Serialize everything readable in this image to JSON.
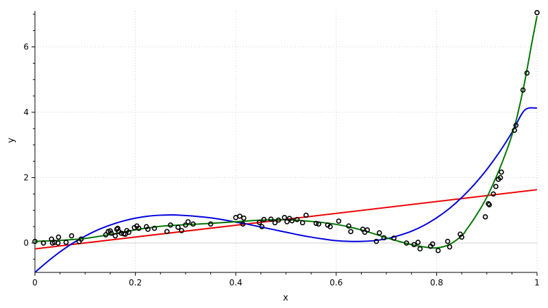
{
  "chart_data": {
    "type": "scatter",
    "title": "",
    "xlabel": "x",
    "ylabel": "y",
    "xlim": [
      0,
      1
    ],
    "ylim": [
      -0.9,
      7.1
    ],
    "grid": true,
    "x_ticks": [
      0,
      0.2,
      0.4,
      0.6,
      0.8,
      1
    ],
    "x_tick_labels": [
      "0",
      "0.2",
      "0.4",
      "0.6",
      "0.8",
      "1"
    ],
    "y_ticks": [
      0,
      2,
      4,
      6
    ],
    "y_tick_labels": [
      "0",
      "2",
      "4",
      "6"
    ],
    "points": {
      "marker_color": "#000000",
      "x": [
        0.0,
        0.017,
        0.033,
        0.035,
        0.039,
        0.046,
        0.047,
        0.062,
        0.073,
        0.088,
        0.092,
        0.141,
        0.146,
        0.15,
        0.152,
        0.16,
        0.163,
        0.165,
        0.167,
        0.172,
        0.177,
        0.18,
        0.183,
        0.187,
        0.198,
        0.203,
        0.207,
        0.222,
        0.225,
        0.238,
        0.263,
        0.27,
        0.285,
        0.292,
        0.3,
        0.305,
        0.315,
        0.35,
        0.4,
        0.408,
        0.414,
        0.416,
        0.447,
        0.452,
        0.456,
        0.47,
        0.478,
        0.485,
        0.497,
        0.502,
        0.507,
        0.512,
        0.522,
        0.533,
        0.54,
        0.56,
        0.565,
        0.583,
        0.588,
        0.605,
        0.625,
        0.629,
        0.653,
        0.657,
        0.662,
        0.68,
        0.686,
        0.695,
        0.715,
        0.74,
        0.755,
        0.763,
        0.767,
        0.788,
        0.792,
        0.803,
        0.822,
        0.826,
        0.847,
        0.85,
        0.897,
        0.903,
        0.905,
        0.913,
        0.918,
        0.923,
        0.927,
        0.929,
        0.955,
        0.958,
        0.972,
        0.98,
        1.0
      ],
      "y": [
        0.05,
        0.0,
        0.12,
        0.0,
        0.02,
        0.0,
        0.18,
        0.02,
        0.22,
        0.04,
        0.12,
        0.25,
        0.35,
        0.37,
        0.3,
        0.22,
        0.42,
        0.45,
        0.35,
        0.3,
        0.28,
        0.27,
        0.38,
        0.33,
        0.47,
        0.52,
        0.45,
        0.5,
        0.42,
        0.45,
        0.35,
        0.55,
        0.48,
        0.38,
        0.55,
        0.65,
        0.58,
        0.58,
        0.78,
        0.82,
        0.58,
        0.76,
        0.63,
        0.5,
        0.72,
        0.73,
        0.62,
        0.7,
        0.78,
        0.65,
        0.75,
        0.68,
        0.72,
        0.62,
        0.85,
        0.6,
        0.58,
        0.55,
        0.5,
        0.67,
        0.52,
        0.35,
        0.42,
        0.33,
        0.4,
        0.05,
        0.31,
        0.16,
        0.15,
        0.0,
        -0.05,
        0.02,
        -0.18,
        -0.1,
        -0.03,
        -0.23,
        0.05,
        -0.12,
        0.27,
        0.18,
        0.8,
        1.2,
        1.17,
        1.5,
        1.73,
        1.95,
        2.0,
        2.17,
        3.45,
        3.6,
        4.68,
        5.2,
        7.05
      ]
    },
    "series": [
      {
        "kind": "linear fit",
        "color": "#ee0000",
        "x": [
          0,
          1
        ],
        "y": [
          -0.18,
          1.63
        ]
      },
      {
        "kind": "cubic fit",
        "color": "#0000dd",
        "x": [
          0,
          0.025,
          0.05,
          0.075,
          0.1,
          0.125,
          0.15,
          0.175,
          0.2,
          0.225,
          0.25,
          0.275,
          0.3,
          0.325,
          0.35,
          0.375,
          0.4,
          0.425,
          0.45,
          0.475,
          0.5,
          0.525,
          0.55,
          0.575,
          0.6,
          0.625,
          0.65,
          0.675,
          0.7,
          0.725,
          0.75,
          0.775,
          0.8,
          0.825,
          0.85,
          0.875,
          0.9,
          0.925,
          0.95,
          0.975,
          1
        ],
        "y": [
          -0.9,
          -0.57,
          -0.27,
          -0.01,
          0.21,
          0.4,
          0.55,
          0.67,
          0.76,
          0.82,
          0.85,
          0.86,
          0.84,
          0.81,
          0.77,
          0.71,
          0.64,
          0.57,
          0.49,
          0.41,
          0.33,
          0.25,
          0.18,
          0.12,
          0.07,
          0.05,
          0.05,
          0.07,
          0.13,
          0.23,
          0.36,
          0.54,
          0.77,
          1.05,
          1.39,
          1.79,
          2.25,
          2.78,
          3.38,
          4.06,
          4.13
        ]
      },
      {
        "kind": "high-order fit",
        "color": "#007700",
        "x": [
          0,
          0.05,
          0.1,
          0.15,
          0.2,
          0.25,
          0.3,
          0.35,
          0.4,
          0.45,
          0.5,
          0.55,
          0.6,
          0.65,
          0.7,
          0.725,
          0.75,
          0.775,
          0.8,
          0.825,
          0.85,
          0.86,
          0.875,
          0.89,
          0.9,
          0.91,
          0.925,
          0.94,
          0.95,
          0.96,
          0.975,
          0.99,
          1
        ],
        "y": [
          0.05,
          0.08,
          0.14,
          0.26,
          0.4,
          0.51,
          0.56,
          0.6,
          0.65,
          0.7,
          0.71,
          0.66,
          0.57,
          0.4,
          0.16,
          0.05,
          -0.05,
          -0.12,
          -0.15,
          -0.05,
          0.22,
          0.42,
          0.75,
          1.12,
          1.4,
          1.72,
          2.25,
          2.85,
          3.3,
          3.85,
          4.9,
          6.15,
          6.95
        ]
      }
    ]
  }
}
